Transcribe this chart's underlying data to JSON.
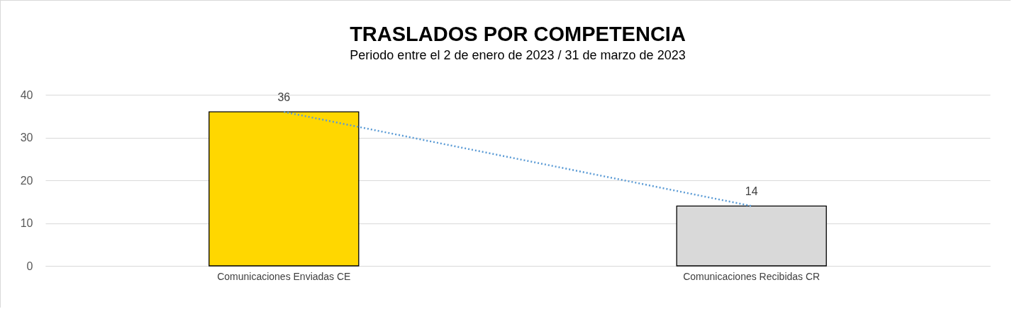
{
  "chart_data": {
    "type": "bar",
    "title": "TRASLADOS POR COMPETENCIA",
    "subtitle": "Periodo entre el 2 de enero de 2023 / 31 de marzo de 2023",
    "categories": [
      "Comunicaciones Enviadas CE",
      "Comunicaciones Recibidas CR"
    ],
    "series": [
      {
        "colors": [
          "#ffd700",
          "#d9d9d9"
        ],
        "values": [
          36,
          14
        ],
        "value_labels": [
          "36",
          "14"
        ]
      },
      {
        "type": "line",
        "x": [
          "Comunicaciones Enviadas CE",
          "Comunicaciones Recibidas CR"
        ],
        "color": "#5b9bd5",
        "values": [
          36,
          14
        ],
        "line_style": "dotted",
        "marker": "none"
      }
    ],
    "ylim": [
      0,
      40
    ],
    "yticks": [
      0,
      10,
      20,
      30,
      40
    ],
    "grid": "y"
  }
}
